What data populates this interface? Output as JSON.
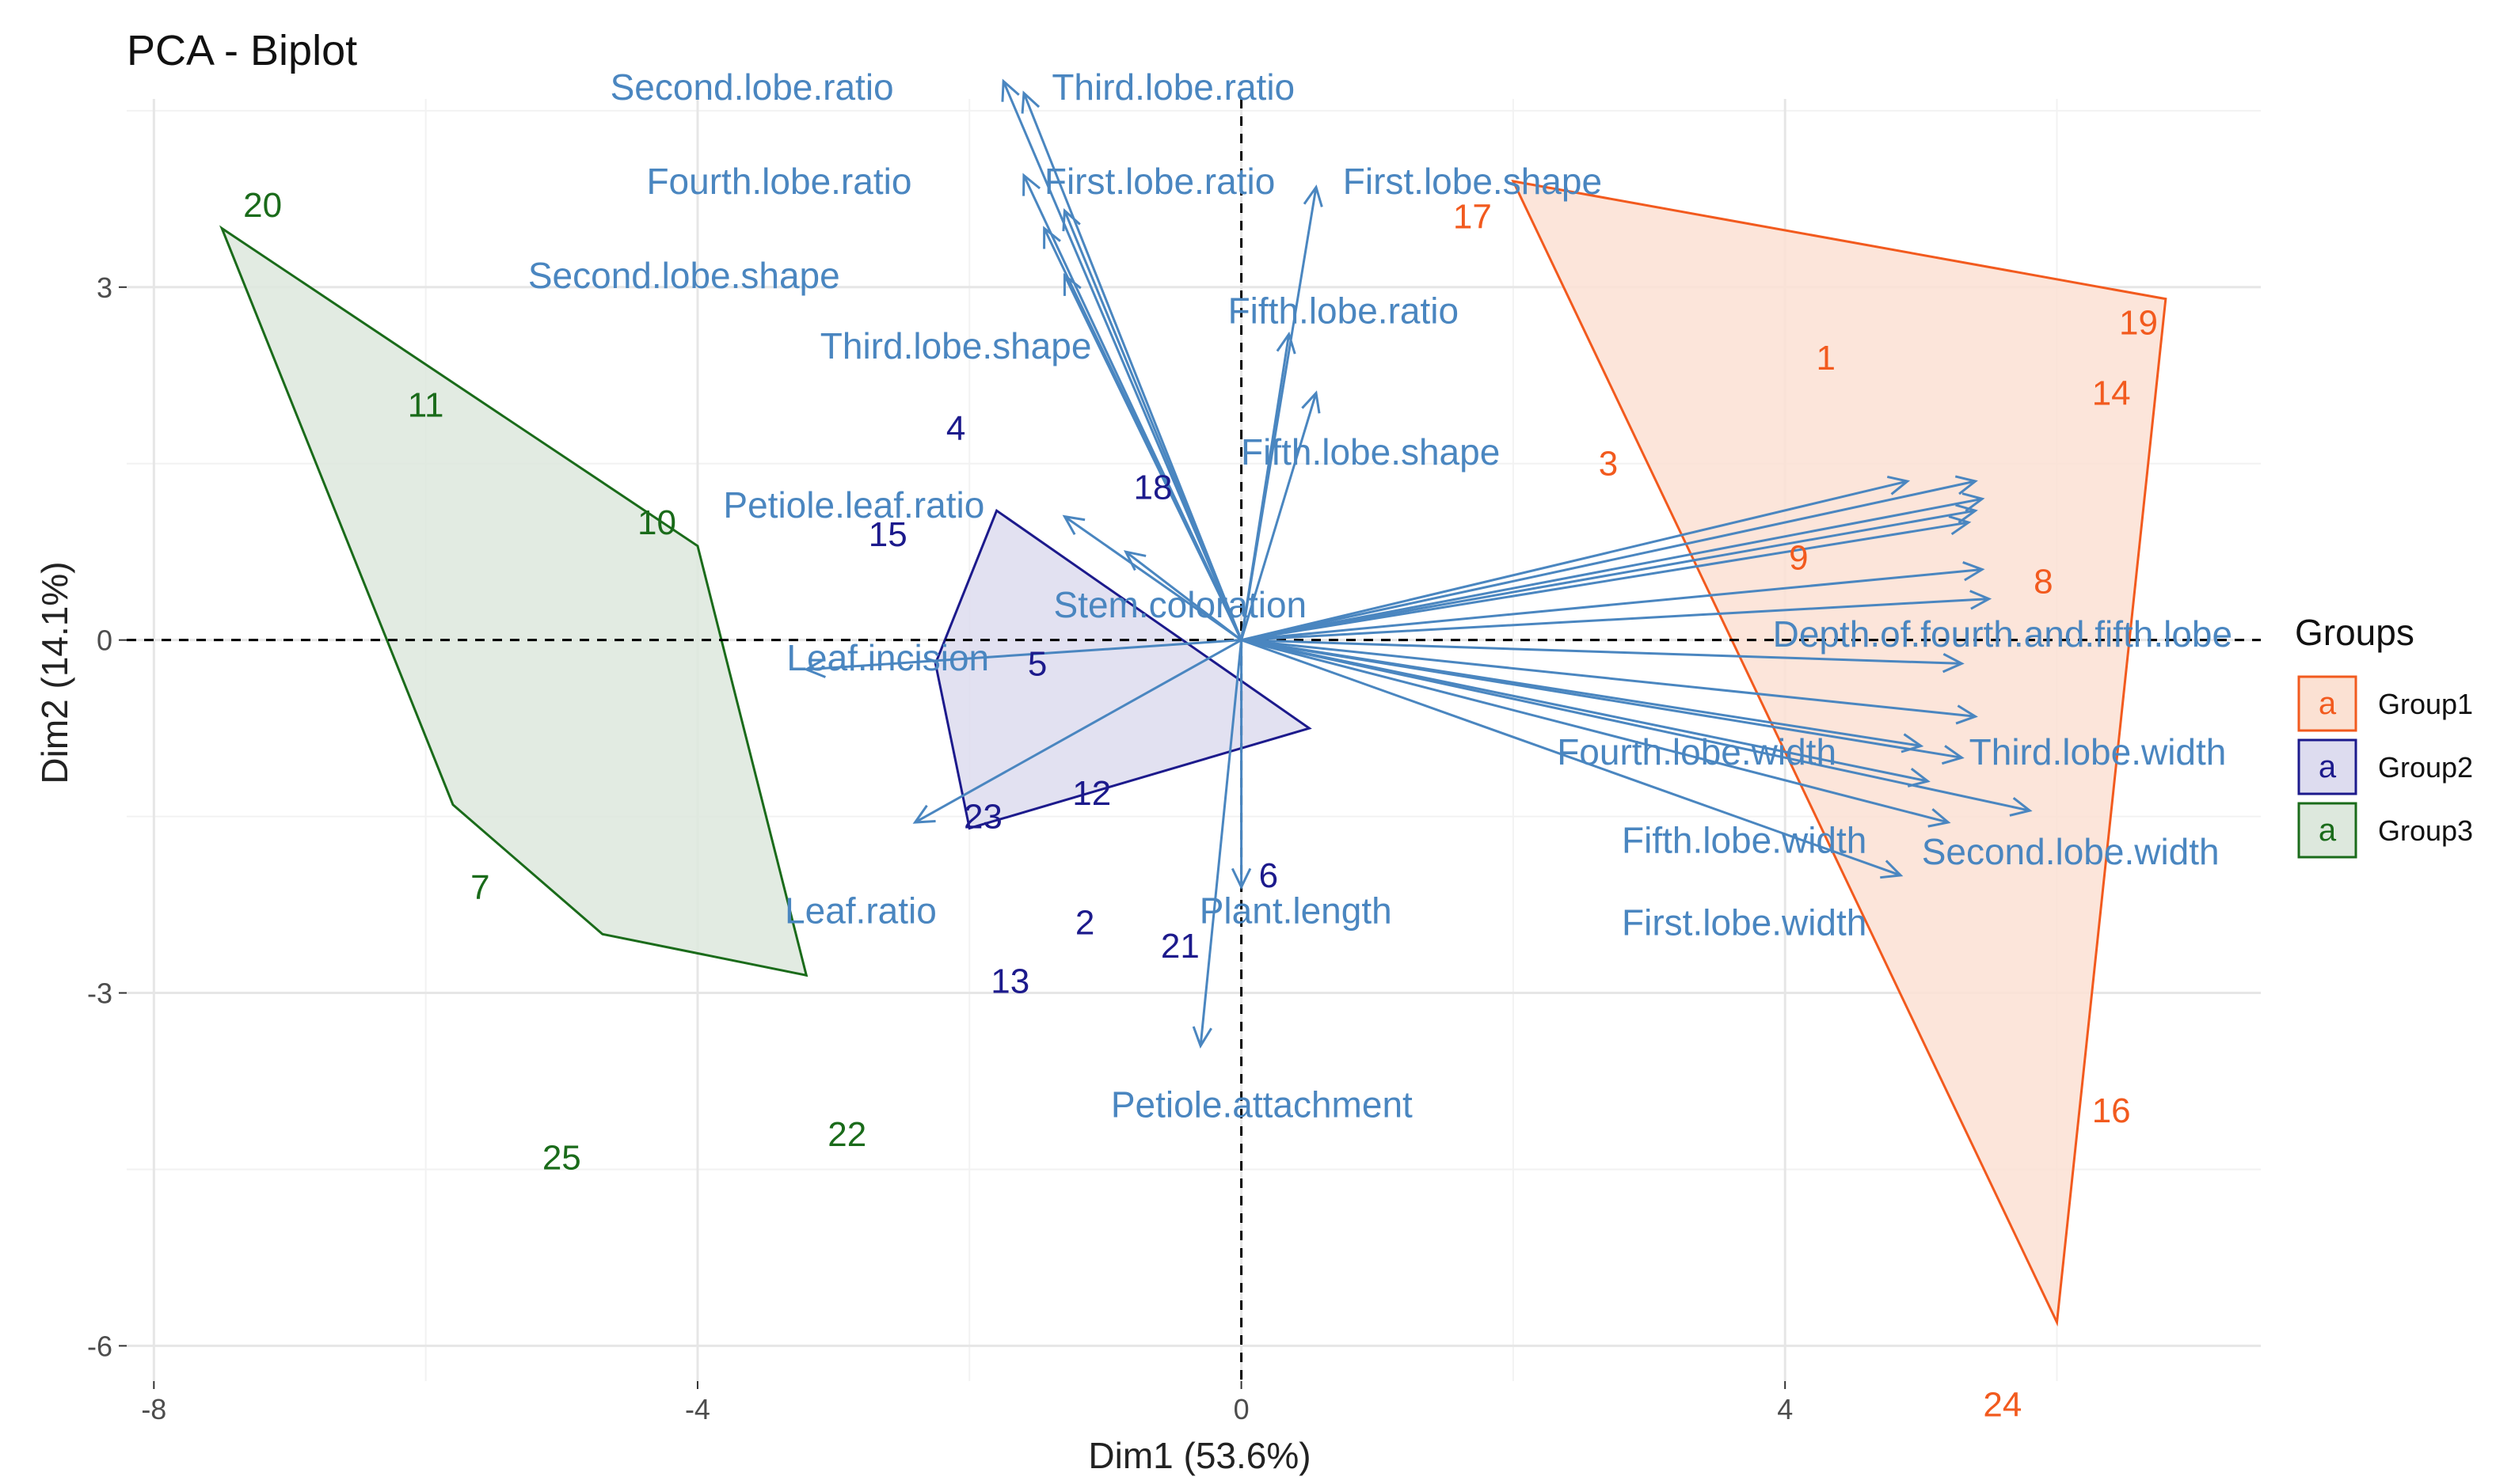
{
  "chart_data": {
    "type": "scatter",
    "title": "PCA - Biplot",
    "xlabel": "Dim1 (53.6%)",
    "ylabel": "Dim2 (14.1%)",
    "xlim": [
      -8.2,
      7.5
    ],
    "ylim": [
      -6.3,
      4.6
    ],
    "xticks": [
      -8,
      -4,
      0,
      4
    ],
    "yticks": [
      -6,
      -3,
      0,
      3
    ],
    "grid": true,
    "legend": {
      "title": "Groups",
      "position": "right",
      "key_letter": "a",
      "entries": [
        "Group1",
        "Group2",
        "Group3"
      ]
    },
    "groups": [
      {
        "name": "Group1",
        "color": "#f25a1e",
        "fill": "#fbe1d3",
        "hull": [
          [
            2.0,
            3.9
          ],
          [
            6.8,
            2.9
          ],
          [
            6.0,
            -5.8
          ],
          [
            2.0,
            3.9
          ]
        ]
      },
      {
        "name": "Group2",
        "color": "#1c1a8c",
        "fill": "#dddcef",
        "hull": [
          [
            -1.8,
            1.1
          ],
          [
            0.5,
            -0.75
          ],
          [
            -2.0,
            -1.6
          ],
          [
            -2.25,
            -0.2
          ],
          [
            -1.8,
            1.1
          ]
        ]
      },
      {
        "name": "Group3",
        "color": "#1a6b1a",
        "fill": "#dde8dd",
        "hull": [
          [
            -7.5,
            3.5
          ],
          [
            -4.0,
            0.8
          ],
          [
            -3.2,
            -2.85
          ],
          [
            -4.7,
            -2.5
          ],
          [
            -5.8,
            -1.4
          ],
          [
            -7.5,
            3.5
          ]
        ]
      }
    ],
    "points": [
      {
        "label": "17",
        "group": "Group1",
        "x": 1.7,
        "y": 3.6
      },
      {
        "label": "19",
        "group": "Group1",
        "x": 6.6,
        "y": 2.7
      },
      {
        "label": "1",
        "group": "Group1",
        "x": 4.3,
        "y": 2.4
      },
      {
        "label": "14",
        "group": "Group1",
        "x": 6.4,
        "y": 2.1
      },
      {
        "label": "3",
        "group": "Group1",
        "x": 2.7,
        "y": 1.5
      },
      {
        "label": "9",
        "group": "Group1",
        "x": 4.1,
        "y": 0.7
      },
      {
        "label": "8",
        "group": "Group1",
        "x": 5.9,
        "y": 0.5
      },
      {
        "label": "16",
        "group": "Group1",
        "x": 6.4,
        "y": -4.0
      },
      {
        "label": "24",
        "group": "Group1",
        "x": 5.6,
        "y": -6.5
      },
      {
        "label": "4",
        "group": "Group2",
        "x": -2.1,
        "y": 1.8
      },
      {
        "label": "18",
        "group": "Group2",
        "x": -0.65,
        "y": 1.3
      },
      {
        "label": "15",
        "group": "Group2",
        "x": -2.6,
        "y": 0.9
      },
      {
        "label": "5",
        "group": "Group2",
        "x": -1.5,
        "y": -0.2
      },
      {
        "label": "12",
        "group": "Group2",
        "x": -1.1,
        "y": -1.3
      },
      {
        "label": "23",
        "group": "Group2",
        "x": -1.9,
        "y": -1.5
      },
      {
        "label": "2",
        "group": "Group2",
        "x": -1.15,
        "y": -2.4
      },
      {
        "label": "21",
        "group": "Group2",
        "x": -0.45,
        "y": -2.6
      },
      {
        "label": "13",
        "group": "Group2",
        "x": -1.7,
        "y": -2.9
      },
      {
        "label": "6",
        "group": "Group2",
        "x": 0.2,
        "y": -2.0
      },
      {
        "label": "20",
        "group": "Group3",
        "x": -7.2,
        "y": 3.7
      },
      {
        "label": "11",
        "group": "Group3",
        "x": -6.0,
        "y": 2.0
      },
      {
        "label": "10",
        "group": "Group3",
        "x": -4.3,
        "y": 1.0
      },
      {
        "label": "7",
        "group": "Group3",
        "x": -5.6,
        "y": -2.1
      },
      {
        "label": "25",
        "group": "Group3",
        "x": -5.0,
        "y": -4.4
      },
      {
        "label": "22",
        "group": "Group3",
        "x": -2.9,
        "y": -4.2
      }
    ],
    "variables": [
      {
        "label": "Second.lobe.ratio",
        "x": -1.75,
        "y": 4.75,
        "lx": -3.6,
        "ly": 4.7
      },
      {
        "label": "Third.lobe.ratio",
        "x": -1.6,
        "y": 4.65,
        "lx": -0.5,
        "ly": 4.7
      },
      {
        "label": "Fourth.lobe.ratio",
        "x": -1.6,
        "y": 3.95,
        "lx": -3.4,
        "ly": 3.9
      },
      {
        "label": "First.lobe.ratio",
        "x": -1.3,
        "y": 3.65,
        "lx": -0.6,
        "ly": 3.9
      },
      {
        "label": "First.lobe.shape",
        "x": 0.55,
        "y": 3.85,
        "lx": 1.7,
        "ly": 3.9
      },
      {
        "label": "Second.lobe.shape",
        "x": -1.45,
        "y": 3.5,
        "lx": -4.1,
        "ly": 3.1
      },
      {
        "label": "Third.lobe.shape",
        "x": -1.3,
        "y": 3.1,
        "lx": -2.1,
        "ly": 2.5
      },
      {
        "label": "Fifth.lobe.ratio",
        "x": 0.35,
        "y": 2.6,
        "lx": 0.75,
        "ly": 2.8
      },
      {
        "label": "Fifth.lobe.shape",
        "x": 0.55,
        "y": 2.1,
        "lx": 0.95,
        "ly": 1.6
      },
      {
        "label": "Petiole.leaf.ratio",
        "x": -1.3,
        "y": 1.05,
        "lx": -2.85,
        "ly": 1.15
      },
      {
        "label": "Stem.coloration",
        "x": -0.85,
        "y": 0.75,
        "lx": -0.45,
        "ly": 0.3
      },
      {
        "label": "Leaf.incision",
        "x": -3.2,
        "y": -0.25,
        "lx": -2.6,
        "ly": -0.15
      },
      {
        "label": "Leaf.ratio",
        "x": -2.4,
        "y": -1.55,
        "lx": -2.8,
        "ly": -2.3
      },
      {
        "label": "Plant.length",
        "x": 0.0,
        "y": -2.1,
        "lx": 0.4,
        "ly": -2.3
      },
      {
        "label": "Petiole.attachment",
        "x": -0.3,
        "y": -3.45,
        "lx": 0.15,
        "ly": -3.95
      },
      {
        "label": "Depth.of.fourth.and.fifth.lobe",
        "x": 5.5,
        "y": 0.35,
        "lx": 5.6,
        "ly": 0.05
      },
      {
        "label": "Fourth.lobe.width",
        "x": 5.3,
        "y": -1.0,
        "lx": 3.35,
        "ly": -0.95
      },
      {
        "label": "Third.lobe.width",
        "x": 5.8,
        "y": -1.45,
        "lx": 6.3,
        "ly": -0.95
      },
      {
        "label": "Fifth.lobe.width",
        "x": 5.05,
        "y": -1.2,
        "lx": 3.7,
        "ly": -1.7
      },
      {
        "label": "Second.lobe.width",
        "x": 5.2,
        "y": -1.55,
        "lx": 6.1,
        "ly": -1.8
      },
      {
        "label": "First.lobe.width",
        "x": 4.85,
        "y": -2.0,
        "lx": 3.7,
        "ly": -2.4
      }
    ],
    "extra_arrows": [
      {
        "x": 4.9,
        "y": 1.35
      },
      {
        "x": 5.4,
        "y": 1.35
      },
      {
        "x": 5.45,
        "y": 1.2
      },
      {
        "x": 5.4,
        "y": 1.1
      },
      {
        "x": 5.35,
        "y": 1.0
      },
      {
        "x": 5.45,
        "y": 0.6
      },
      {
        "x": 5.3,
        "y": -0.2
      },
      {
        "x": 5.0,
        "y": -0.9
      },
      {
        "x": 5.4,
        "y": -0.65
      }
    ]
  }
}
